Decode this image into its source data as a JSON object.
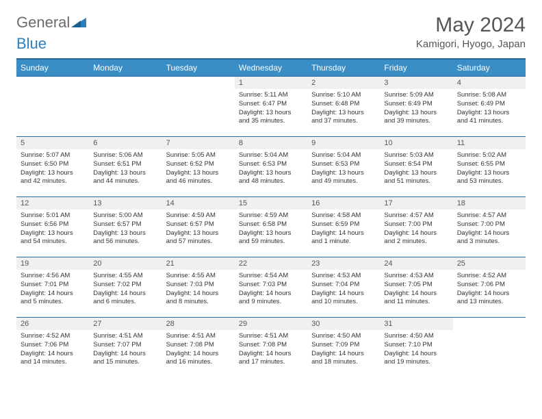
{
  "brand": {
    "part1": "General",
    "part2": "Blue"
  },
  "header": {
    "title": "May 2024",
    "location": "Kamigori, Hyogo, Japan"
  },
  "colors": {
    "header_bg": "#3b8dc6",
    "header_border": "#2a6a9a",
    "daynum_bg": "#eef0f2",
    "text": "#333333",
    "muted": "#555555"
  },
  "dayNames": [
    "Sunday",
    "Monday",
    "Tuesday",
    "Wednesday",
    "Thursday",
    "Friday",
    "Saturday"
  ],
  "weeks": [
    [
      {
        "n": "",
        "sr": "",
        "ss": "",
        "dl": ""
      },
      {
        "n": "",
        "sr": "",
        "ss": "",
        "dl": ""
      },
      {
        "n": "",
        "sr": "",
        "ss": "",
        "dl": ""
      },
      {
        "n": "1",
        "sr": "5:11 AM",
        "ss": "6:47 PM",
        "dl": "13 hours and 35 minutes."
      },
      {
        "n": "2",
        "sr": "5:10 AM",
        "ss": "6:48 PM",
        "dl": "13 hours and 37 minutes."
      },
      {
        "n": "3",
        "sr": "5:09 AM",
        "ss": "6:49 PM",
        "dl": "13 hours and 39 minutes."
      },
      {
        "n": "4",
        "sr": "5:08 AM",
        "ss": "6:49 PM",
        "dl": "13 hours and 41 minutes."
      }
    ],
    [
      {
        "n": "5",
        "sr": "5:07 AM",
        "ss": "6:50 PM",
        "dl": "13 hours and 42 minutes."
      },
      {
        "n": "6",
        "sr": "5:06 AM",
        "ss": "6:51 PM",
        "dl": "13 hours and 44 minutes."
      },
      {
        "n": "7",
        "sr": "5:05 AM",
        "ss": "6:52 PM",
        "dl": "13 hours and 46 minutes."
      },
      {
        "n": "8",
        "sr": "5:04 AM",
        "ss": "6:53 PM",
        "dl": "13 hours and 48 minutes."
      },
      {
        "n": "9",
        "sr": "5:04 AM",
        "ss": "6:53 PM",
        "dl": "13 hours and 49 minutes."
      },
      {
        "n": "10",
        "sr": "5:03 AM",
        "ss": "6:54 PM",
        "dl": "13 hours and 51 minutes."
      },
      {
        "n": "11",
        "sr": "5:02 AM",
        "ss": "6:55 PM",
        "dl": "13 hours and 53 minutes."
      }
    ],
    [
      {
        "n": "12",
        "sr": "5:01 AM",
        "ss": "6:56 PM",
        "dl": "13 hours and 54 minutes."
      },
      {
        "n": "13",
        "sr": "5:00 AM",
        "ss": "6:57 PM",
        "dl": "13 hours and 56 minutes."
      },
      {
        "n": "14",
        "sr": "4:59 AM",
        "ss": "6:57 PM",
        "dl": "13 hours and 57 minutes."
      },
      {
        "n": "15",
        "sr": "4:59 AM",
        "ss": "6:58 PM",
        "dl": "13 hours and 59 minutes."
      },
      {
        "n": "16",
        "sr": "4:58 AM",
        "ss": "6:59 PM",
        "dl": "14 hours and 1 minute."
      },
      {
        "n": "17",
        "sr": "4:57 AM",
        "ss": "7:00 PM",
        "dl": "14 hours and 2 minutes."
      },
      {
        "n": "18",
        "sr": "4:57 AM",
        "ss": "7:00 PM",
        "dl": "14 hours and 3 minutes."
      }
    ],
    [
      {
        "n": "19",
        "sr": "4:56 AM",
        "ss": "7:01 PM",
        "dl": "14 hours and 5 minutes."
      },
      {
        "n": "20",
        "sr": "4:55 AM",
        "ss": "7:02 PM",
        "dl": "14 hours and 6 minutes."
      },
      {
        "n": "21",
        "sr": "4:55 AM",
        "ss": "7:03 PM",
        "dl": "14 hours and 8 minutes."
      },
      {
        "n": "22",
        "sr": "4:54 AM",
        "ss": "7:03 PM",
        "dl": "14 hours and 9 minutes."
      },
      {
        "n": "23",
        "sr": "4:53 AM",
        "ss": "7:04 PM",
        "dl": "14 hours and 10 minutes."
      },
      {
        "n": "24",
        "sr": "4:53 AM",
        "ss": "7:05 PM",
        "dl": "14 hours and 11 minutes."
      },
      {
        "n": "25",
        "sr": "4:52 AM",
        "ss": "7:06 PM",
        "dl": "14 hours and 13 minutes."
      }
    ],
    [
      {
        "n": "26",
        "sr": "4:52 AM",
        "ss": "7:06 PM",
        "dl": "14 hours and 14 minutes."
      },
      {
        "n": "27",
        "sr": "4:51 AM",
        "ss": "7:07 PM",
        "dl": "14 hours and 15 minutes."
      },
      {
        "n": "28",
        "sr": "4:51 AM",
        "ss": "7:08 PM",
        "dl": "14 hours and 16 minutes."
      },
      {
        "n": "29",
        "sr": "4:51 AM",
        "ss": "7:08 PM",
        "dl": "14 hours and 17 minutes."
      },
      {
        "n": "30",
        "sr": "4:50 AM",
        "ss": "7:09 PM",
        "dl": "14 hours and 18 minutes."
      },
      {
        "n": "31",
        "sr": "4:50 AM",
        "ss": "7:10 PM",
        "dl": "14 hours and 19 minutes."
      },
      {
        "n": "",
        "sr": "",
        "ss": "",
        "dl": ""
      }
    ]
  ],
  "labels": {
    "sunrise": "Sunrise: ",
    "sunset": "Sunset: ",
    "daylight": "Daylight: "
  }
}
